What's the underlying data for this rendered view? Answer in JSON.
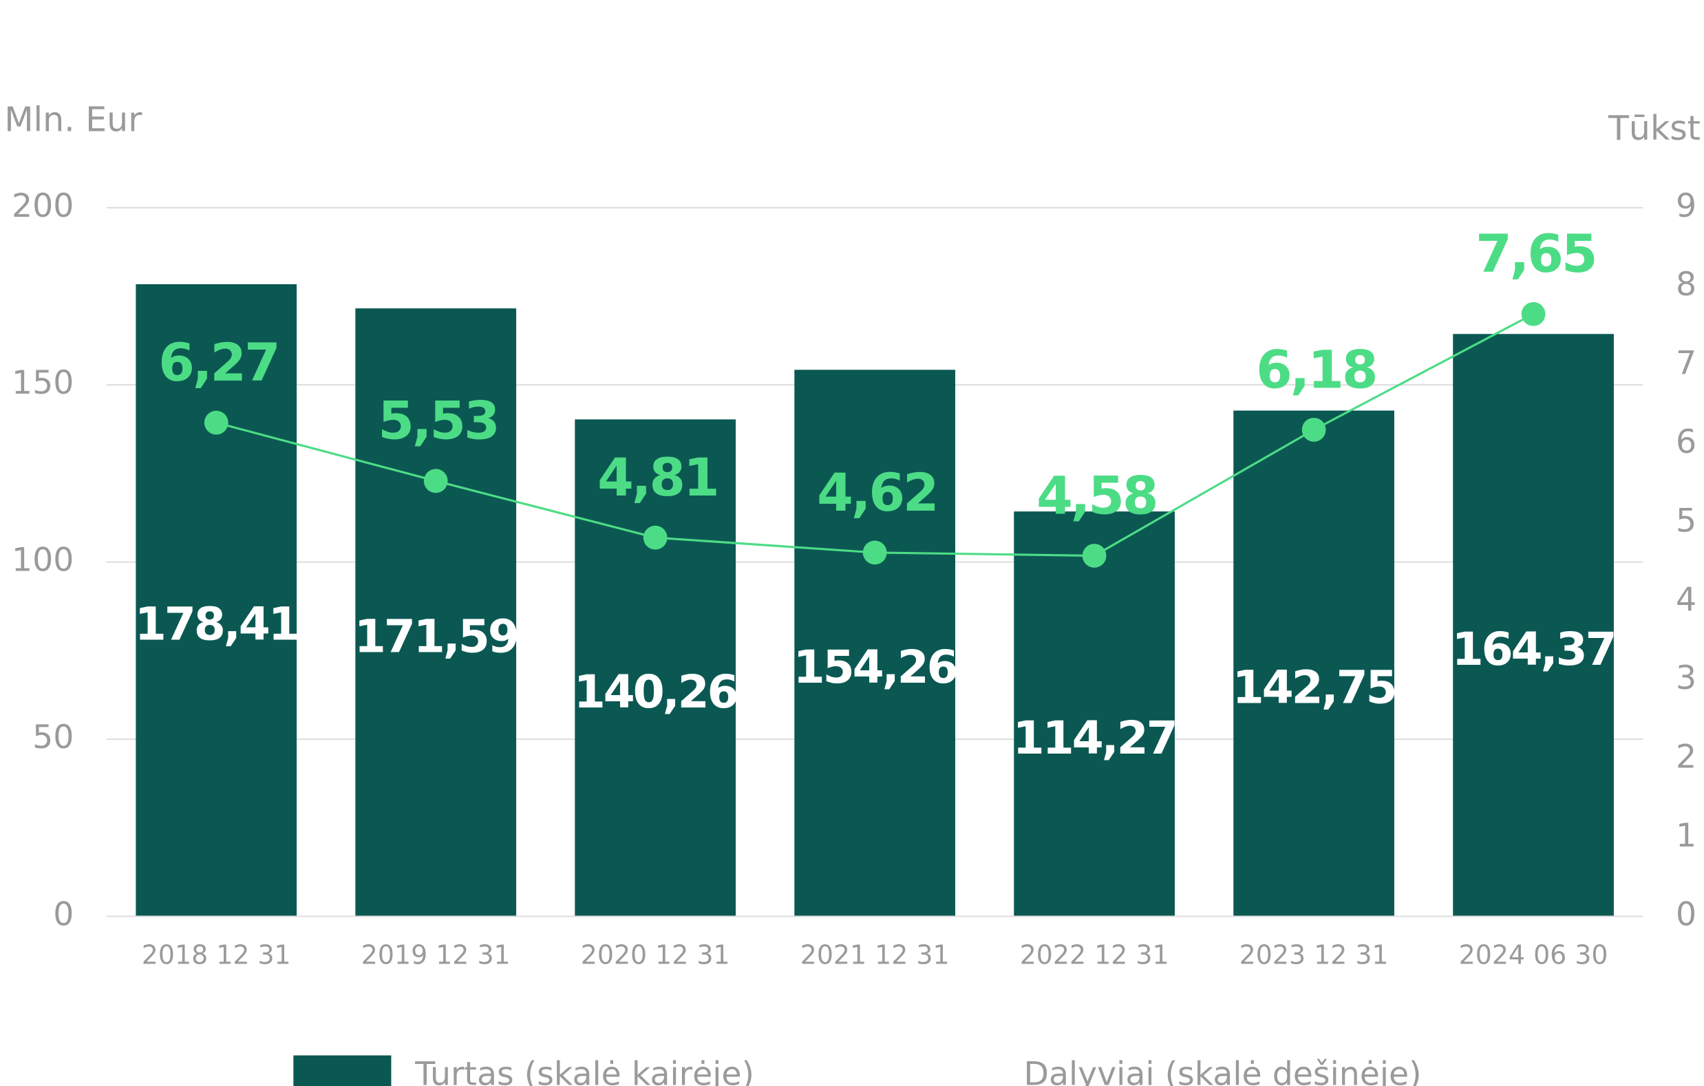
{
  "chart_data": {
    "type": "bar",
    "y_label": "Mln. Eur",
    "y2_label": "Tūkst.",
    "categories": [
      "2018 12 31",
      "2019 12 31",
      "2020 12 31",
      "2021 12 31",
      "2022 12 31",
      "2023 12 31",
      "2024 06 30"
    ],
    "series": [
      {
        "name": "Turtas (skalė kairėje)",
        "type": "bar",
        "color": "#0b5853",
        "values": [
          178.41,
          171.59,
          140.26,
          154.26,
          114.27,
          142.75,
          164.37
        ],
        "value_labels": [
          "178,41",
          "171,59",
          "140,26",
          "154,26",
          "114,27",
          "142,75",
          "164,37"
        ]
      },
      {
        "name": "Dalyviai (skalė dešinėje)",
        "type": "line",
        "axis": "y2",
        "color": "#4ddc86",
        "values": [
          6.27,
          5.53,
          4.81,
          4.62,
          4.58,
          6.18,
          7.65
        ],
        "value_labels": [
          "6,27",
          "5,53",
          "4,81",
          "4,62",
          "4,58",
          "6,18",
          "7,65"
        ]
      }
    ],
    "ylim": [
      0,
      200
    ],
    "yticks": [
      0,
      50,
      100,
      150,
      200
    ],
    "y2lim": [
      0,
      9
    ],
    "y2ticks": [
      0,
      1,
      2,
      3,
      4,
      5,
      6,
      7,
      8,
      9
    ],
    "grid": true,
    "legend": "bottom"
  }
}
